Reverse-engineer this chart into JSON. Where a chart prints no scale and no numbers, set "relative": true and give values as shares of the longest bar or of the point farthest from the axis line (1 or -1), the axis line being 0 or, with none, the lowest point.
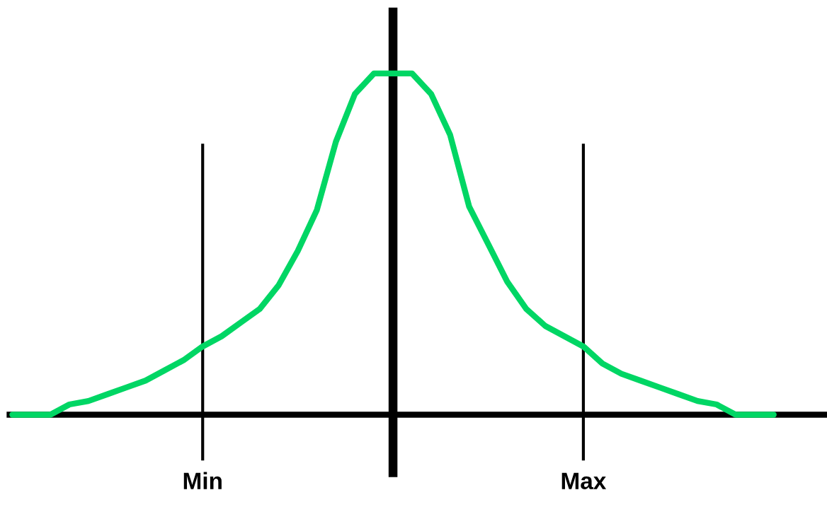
{
  "chart_data": {
    "type": "line",
    "relative": true,
    "categories": [
      null,
      null,
      null,
      null,
      null,
      null,
      null,
      null,
      null,
      null,
      null,
      null,
      null,
      null,
      null,
      null,
      null,
      null,
      null,
      null,
      null,
      null,
      null,
      null,
      null,
      null,
      null,
      null,
      null,
      null,
      null,
      null,
      null,
      null,
      null,
      null,
      null,
      null,
      null,
      null,
      null
    ],
    "series": [
      {
        "color": "#00d664",
        "values": [
          0,
          0,
          0,
          0.03,
          0.04,
          0.06,
          0.08,
          0.1,
          0.13,
          0.16,
          0.2,
          0.23,
          0.27,
          0.31,
          0.38,
          0.48,
          0.6,
          0.8,
          0.94,
          1.0,
          1.0,
          1.0,
          0.94,
          0.82,
          0.61,
          0.5,
          0.39,
          0.31,
          0.26,
          0.23,
          0.2,
          0.15,
          0.12,
          0.1,
          0.08,
          0.06,
          0.04,
          0.03,
          0,
          0,
          0
        ]
      }
    ],
    "annotations": [
      "Min",
      "Max"
    ],
    "legend": false,
    "marker": "none",
    "line_style": "solid"
  }
}
